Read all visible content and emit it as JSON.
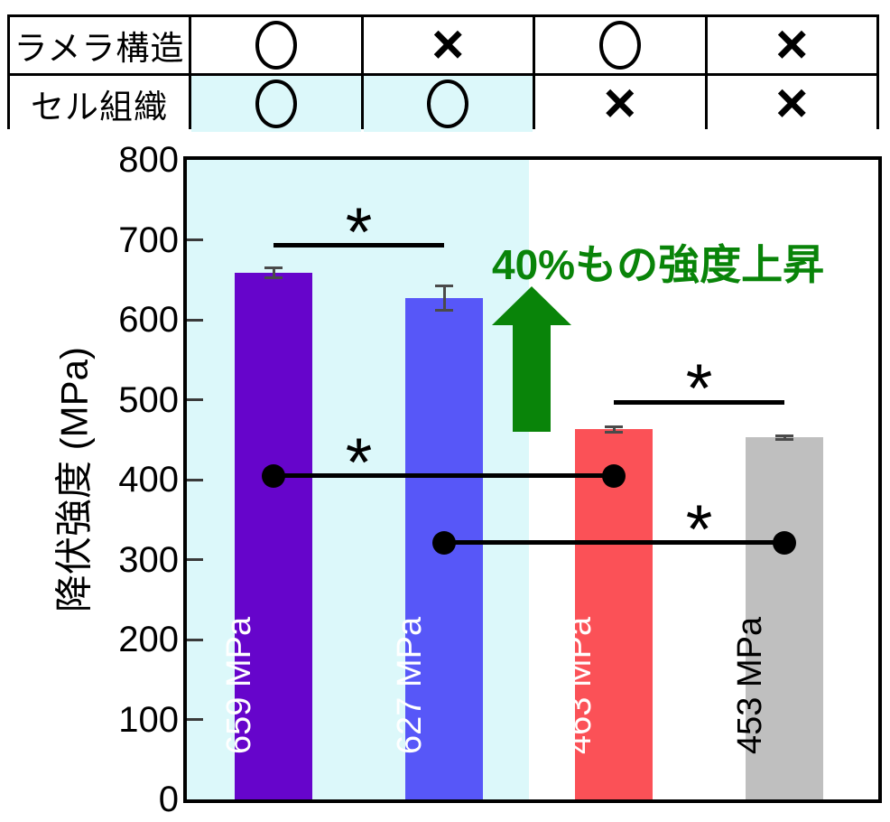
{
  "condition_table": {
    "rows": [
      {
        "label": "ラメラ構造",
        "cells": [
          {
            "mark": "○",
            "highlight": false
          },
          {
            "mark": "×",
            "highlight": false
          },
          {
            "mark": "○",
            "highlight": false
          },
          {
            "mark": "×",
            "highlight": false
          }
        ]
      },
      {
        "label": "セル組織",
        "cells": [
          {
            "mark": "○",
            "highlight": true
          },
          {
            "mark": "○",
            "highlight": true
          },
          {
            "mark": "×",
            "highlight": false
          },
          {
            "mark": "×",
            "highlight": false
          }
        ]
      }
    ],
    "highlight_color": "#DCF8FA"
  },
  "chart_data": {
    "type": "bar",
    "title": "",
    "xlabel": "",
    "ylabel": "降伏強度 (MPa)",
    "ylim": [
      0,
      800
    ],
    "yticks": [
      0,
      100,
      200,
      300,
      400,
      500,
      600,
      700,
      800
    ],
    "grid": false,
    "bars": [
      {
        "value": 659,
        "error": 8,
        "label": "659 MPa",
        "color": "#6605CB",
        "label_color": "#FFFFFF"
      },
      {
        "value": 627,
        "error": 17,
        "label": "627 MPa",
        "color": "#5757F8",
        "label_color": "#FFFFFF"
      },
      {
        "value": 463,
        "error": 5,
        "label": "463 MPa",
        "color": "#FB5157",
        "label_color": "#FFFFFF"
      },
      {
        "value": 453,
        "error": 4,
        "label": "453 MPa",
        "color": "#BFBFBF",
        "label_color": "#000000"
      }
    ],
    "highlight_region": {
      "covers_bars": [
        0,
        1
      ],
      "color": "#DCF8FA"
    },
    "significance_brackets": [
      {
        "between": [
          0,
          1
        ],
        "label": "*",
        "y_mpa": 693
      },
      {
        "between": [
          2,
          3
        ],
        "label": "*",
        "y_mpa": 497
      }
    ],
    "dot_connectors": [
      {
        "between": [
          0,
          2
        ],
        "label": "*",
        "label_x_between": [
          0,
          1
        ],
        "y_mpa": 405
      },
      {
        "between": [
          1,
          3
        ],
        "label": "*",
        "label_x_between": [
          2,
          3
        ],
        "y_mpa": 321
      }
    ],
    "callout": {
      "text": "40%もの強度上昇",
      "color": "#098409",
      "arrow": "up"
    }
  }
}
